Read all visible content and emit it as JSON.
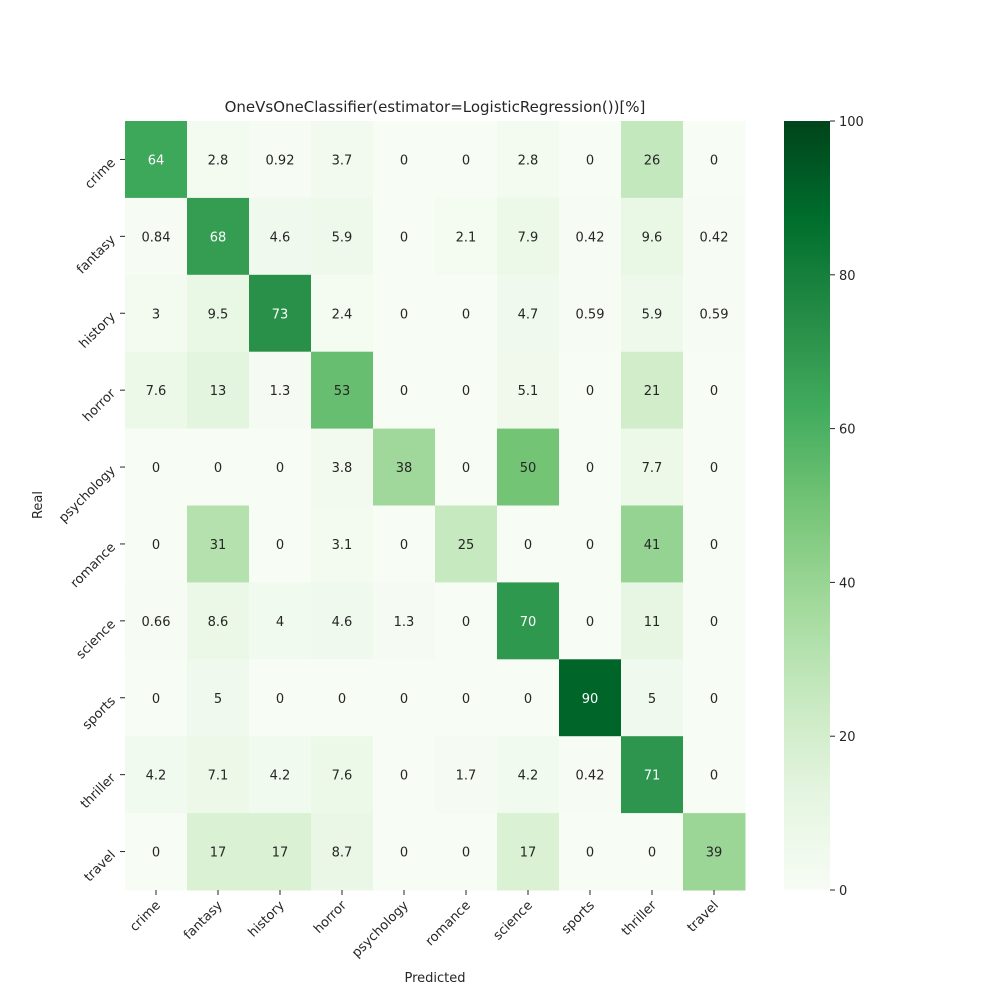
{
  "chart_data": {
    "type": "heatmap",
    "title": "OneVsOneClassifier(estimator=LogisticRegression())[%]",
    "xlabel": "Predicted",
    "ylabel": "Real",
    "x_categories": [
      "crime",
      "fantasy",
      "history",
      "horror",
      "psychology",
      "romance",
      "science",
      "sports",
      "thriller",
      "travel"
    ],
    "y_categories": [
      "crime",
      "fantasy",
      "history",
      "horror",
      "psychology",
      "romance",
      "science",
      "sports",
      "thriller",
      "travel"
    ],
    "values": [
      [
        64,
        2.8,
        0.92,
        3.7,
        0,
        0,
        2.8,
        0,
        26,
        0
      ],
      [
        0.84,
        68,
        4.6,
        5.9,
        0,
        2.1,
        7.9,
        0.42,
        9.6,
        0.42
      ],
      [
        3,
        9.5,
        73,
        2.4,
        0,
        0,
        4.7,
        0.59,
        5.9,
        0.59
      ],
      [
        7.6,
        13,
        1.3,
        53,
        0,
        0,
        5.1,
        0,
        21,
        0
      ],
      [
        0,
        0,
        0,
        3.8,
        38,
        0,
        50,
        0,
        7.7,
        0
      ],
      [
        0,
        31,
        0,
        3.1,
        0,
        25,
        0,
        0,
        41,
        0
      ],
      [
        0.66,
        8.6,
        4,
        4.6,
        1.3,
        0,
        70,
        0,
        11,
        0
      ],
      [
        0,
        5,
        0,
        0,
        0,
        0,
        0,
        90,
        5,
        0
      ],
      [
        4.2,
        7.1,
        4.2,
        7.6,
        0,
        1.7,
        4.2,
        0.42,
        71,
        0
      ],
      [
        0,
        17,
        17,
        8.7,
        0,
        0,
        17,
        0,
        0,
        39
      ]
    ],
    "colorbar": {
      "min": 0,
      "max": 100,
      "ticks": [
        0,
        20,
        40,
        60,
        80,
        100
      ],
      "colormap": "Greens",
      "colors": [
        "#f7fcf5",
        "#e5f5e0",
        "#c7e9c0",
        "#a1d99b",
        "#74c476",
        "#41ab5d",
        "#238b45",
        "#006d2c",
        "#00441b"
      ]
    },
    "grid": false,
    "annotations": "cell values shown"
  }
}
